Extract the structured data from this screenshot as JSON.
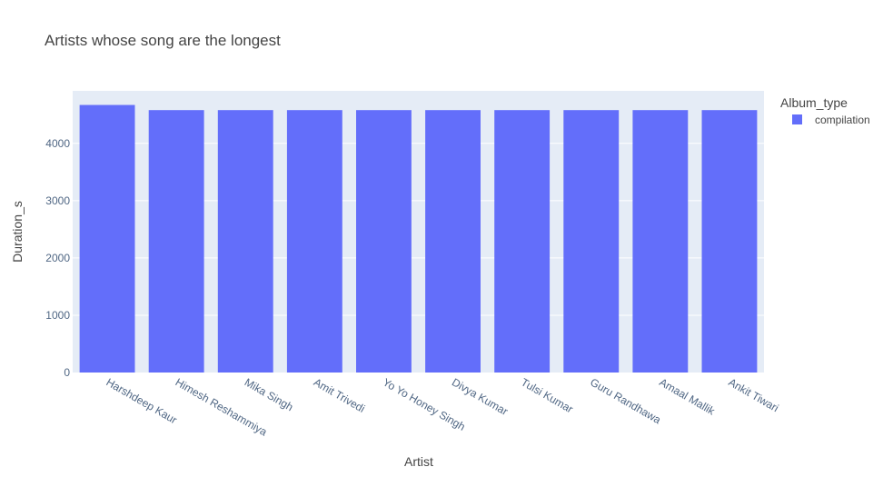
{
  "chart_data": {
    "type": "bar",
    "title": "Artists whose song are the longest",
    "xlabel": "Artist",
    "ylabel": "Duration_s",
    "categories": [
      "Harshdeep Kaur",
      "Himesh Reshammiya",
      "Mika Singh",
      "Amit Trivedi",
      "Yo Yo Honey Singh",
      "Divya Kumar",
      "Tulsi Kumar",
      "Guru Randhawa",
      "Amaal Mallik",
      "Ankit Tiwari"
    ],
    "series": [
      {
        "name": "compilation",
        "color": "#636efa",
        "values": [
          4670,
          4580,
          4580,
          4580,
          4580,
          4580,
          4580,
          4580,
          4580,
          4580
        ]
      }
    ],
    "yticks": [
      0,
      1000,
      2000,
      3000,
      4000
    ],
    "ylim": [
      0,
      4916
    ],
    "grid": true,
    "legend": {
      "title": "Album_type",
      "position": "top-right"
    },
    "colors": {
      "plot_bg": "#e5ecf6",
      "grid": "#ffffff"
    }
  }
}
